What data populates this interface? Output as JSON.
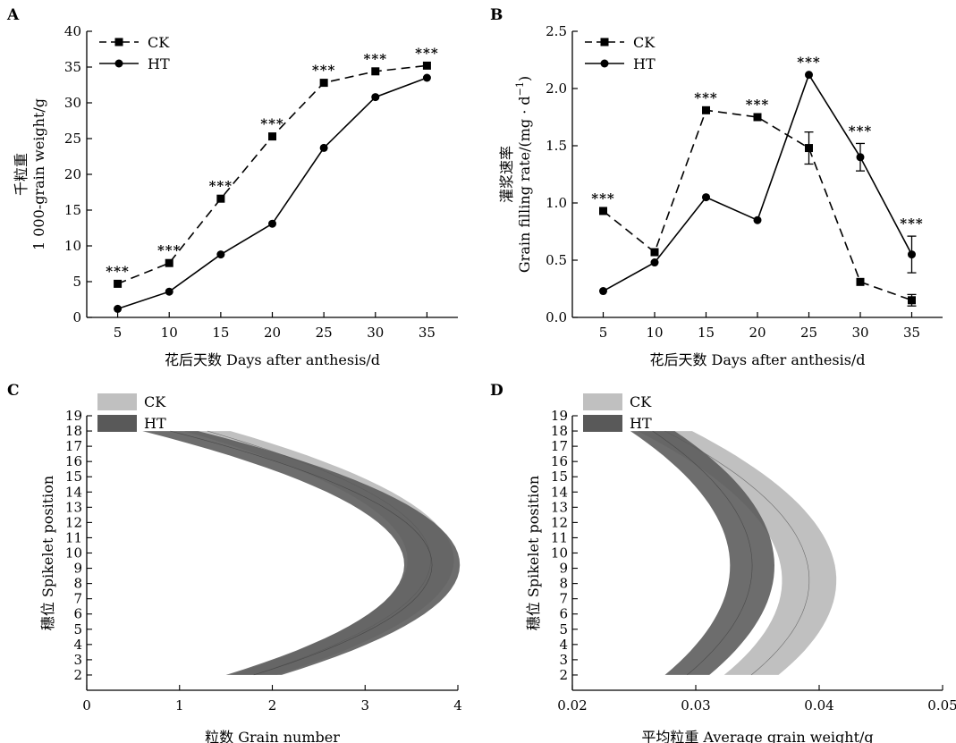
{
  "chart_data": [
    {
      "panel": "A",
      "type": "line",
      "xlabel": "花后天数 Days after anthesis/d",
      "ylabel_cn": "千粒重",
      "ylabel_en": "1 000-grain weight/g",
      "x": [
        5,
        10,
        15,
        20,
        25,
        30,
        35
      ],
      "xlim": [
        2,
        38
      ],
      "ylim": [
        0,
        40
      ],
      "yticks": [
        0,
        5,
        10,
        15,
        20,
        25,
        30,
        35,
        40
      ],
      "legend_position": "top-left",
      "series": [
        {
          "name": "CK",
          "style": "dashed",
          "marker": "square",
          "values": [
            4.7,
            7.6,
            16.6,
            25.3,
            32.8,
            34.4,
            35.2
          ]
        },
        {
          "name": "HT",
          "style": "solid",
          "marker": "circle",
          "values": [
            1.2,
            3.6,
            8.8,
            13.1,
            23.7,
            30.8,
            33.5
          ]
        }
      ],
      "significance": [
        "***",
        "***",
        "***",
        "***",
        "***",
        "***",
        "***"
      ]
    },
    {
      "panel": "B",
      "type": "line",
      "xlabel": "花后天数 Days after anthesis/d",
      "ylabel_cn": "灌浆速率",
      "ylabel_en": "Grain filling rate/(mg · d",
      "ylabel_sup": "−1",
      "ylabel_end": ")",
      "x": [
        5,
        10,
        15,
        20,
        25,
        30,
        35
      ],
      "xlim": [
        2,
        38
      ],
      "ylim": [
        0,
        2.5
      ],
      "yticks": [
        0.0,
        0.5,
        1.0,
        1.5,
        2.0,
        2.5
      ],
      "legend_position": "top-left",
      "series": [
        {
          "name": "CK",
          "style": "dashed",
          "marker": "square",
          "values": [
            0.93,
            0.57,
            1.81,
            1.75,
            1.48,
            0.31,
            0.15
          ],
          "errors": [
            0,
            0,
            0,
            0,
            0.14,
            0,
            0.05
          ]
        },
        {
          "name": "HT",
          "style": "solid",
          "marker": "circle",
          "values": [
            0.23,
            0.48,
            1.05,
            0.85,
            2.12,
            1.4,
            0.55
          ],
          "errors": [
            0,
            0,
            0,
            0,
            0,
            0.12,
            0.16
          ]
        }
      ],
      "significance": [
        "***",
        "",
        "***",
        "***",
        "***",
        "***",
        "***"
      ],
      "significance_x": [
        5,
        15,
        20,
        25,
        30,
        35
      ]
    },
    {
      "panel": "C",
      "type": "area",
      "xlabel": "粒数 Grain number",
      "ylabel": "穗位 Spikelet position",
      "xlim": [
        0,
        4
      ],
      "xticks": [
        0,
        1,
        2,
        3,
        4
      ],
      "ylim": [
        1,
        19
      ],
      "yticks": [
        2,
        3,
        4,
        5,
        6,
        7,
        8,
        9,
        10,
        11,
        12,
        13,
        14,
        15,
        16,
        17,
        18,
        19
      ],
      "legend_position": "top-left",
      "series": [
        {
          "name": "CK",
          "color": "#c0c0c0",
          "center_at_y": [
            [
              2,
              1.8
            ],
            [
              10,
              3.7
            ],
            [
              18,
              1.3
            ]
          ],
          "band_halfwidth": 0.25
        },
        {
          "name": "HT",
          "color": "#595959",
          "center_at_y": [
            [
              2,
              1.8
            ],
            [
              10,
              3.7
            ],
            [
              18,
              0.9
            ]
          ],
          "band_halfwidth": 0.3
        }
      ]
    },
    {
      "panel": "D",
      "type": "area",
      "xlabel": "平均粒重 Average grain weight/g",
      "ylabel": "穗位 Spikelet position",
      "xlim": [
        0.02,
        0.05
      ],
      "xticks": [
        "0.02",
        "0.03",
        "0.04",
        "0.05"
      ],
      "ylim": [
        1,
        19
      ],
      "yticks": [
        2,
        3,
        4,
        5,
        6,
        7,
        8,
        9,
        10,
        11,
        12,
        13,
        14,
        15,
        16,
        17,
        18,
        19
      ],
      "legend_position": "top-left",
      "series": [
        {
          "name": "CK",
          "color": "#c0c0c0",
          "center_at_y": [
            [
              2,
              0.0345
            ],
            [
              10,
              0.0388
            ],
            [
              18,
              0.0275
            ]
          ],
          "band_halfwidth": 0.0022
        },
        {
          "name": "HT",
          "color": "#595959",
          "center_at_y": [
            [
              2,
              0.0293
            ],
            [
              10,
              0.0345
            ],
            [
              18,
              0.0265
            ]
          ],
          "band_halfwidth": 0.0018
        }
      ]
    }
  ]
}
